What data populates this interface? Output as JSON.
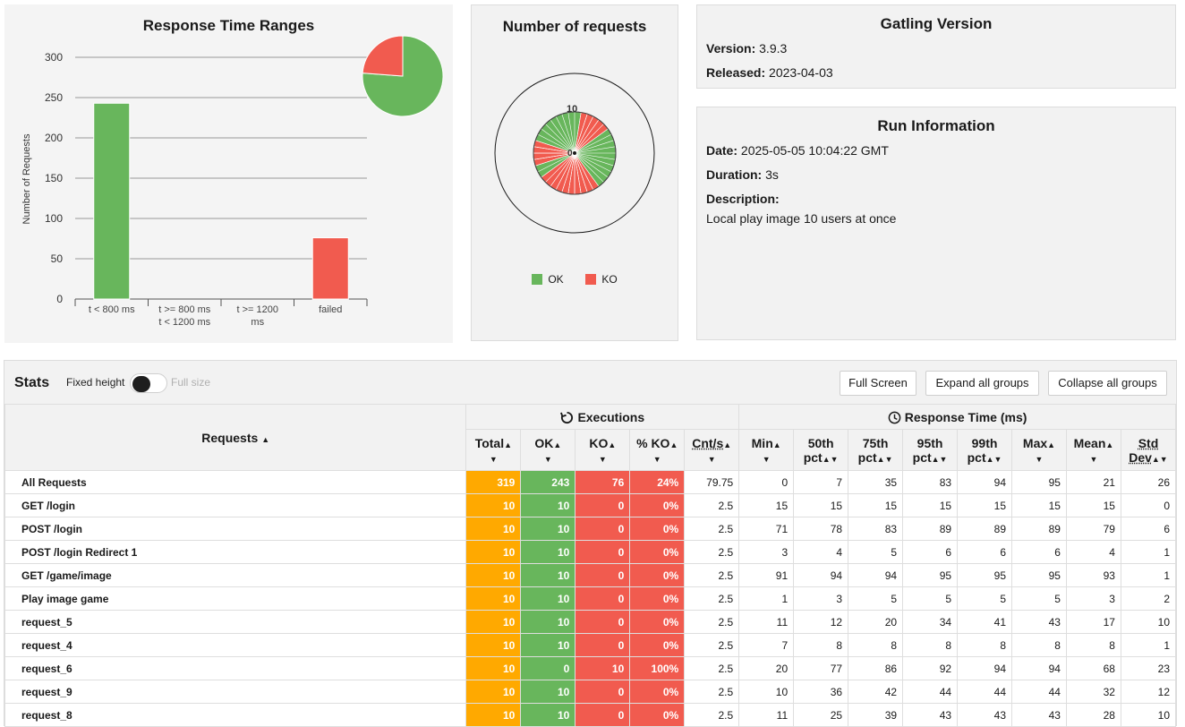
{
  "response_time_ranges": {
    "title": "Response Time Ranges",
    "ylabel": "Number of Requests",
    "y_ticks": [
      "300",
      "250",
      "200",
      "150",
      "100",
      "50",
      "0"
    ],
    "categories": [
      {
        "line1": "t < 800 ms",
        "line2": ""
      },
      {
        "line1": "t >= 800 ms",
        "line2": "t < 1200 ms"
      },
      {
        "line1": "t >= 1200",
        "line2": "ms"
      },
      {
        "line1": "failed",
        "line2": ""
      }
    ]
  },
  "chart_data": {
    "type": "bar",
    "title": "Response Time Ranges",
    "xlabel": "",
    "ylabel": "Number of Requests",
    "categories": [
      "t < 800 ms",
      "t >= 800 ms t < 1200 ms",
      "t >= 1200 ms",
      "failed"
    ],
    "values": [
      243,
      0,
      0,
      76
    ],
    "colors": [
      "#68b65c",
      "#68b65c",
      "#68b65c",
      "#f15b4f"
    ],
    "ylim": [
      0,
      300
    ],
    "inset_pie": {
      "ok": 243,
      "ko": 76
    }
  },
  "number_of_requests": {
    "title": "Number of requests",
    "scale_label_outer": "10",
    "scale_label_inner": "0",
    "legend": [
      {
        "label": "OK",
        "color": "#68b65c"
      },
      {
        "label": "KO",
        "color": "#f15b4f"
      }
    ]
  },
  "gatling_version": {
    "title": "Gatling Version",
    "version_label": "Version:",
    "version": "3.9.3",
    "released_label": "Released:",
    "released": "2023-04-03"
  },
  "run_information": {
    "title": "Run Information",
    "date_label": "Date:",
    "date": "2025-05-05 10:04:22 GMT",
    "duration_label": "Duration:",
    "duration": "3s",
    "description_label": "Description:",
    "description": "Local play image 10 users at once"
  },
  "stats": {
    "title": "Stats",
    "fixed_height": "Fixed height",
    "full_size": "Full size",
    "buttons": {
      "full_screen": "Full Screen",
      "expand": "Expand all groups",
      "collapse": "Collapse all groups"
    },
    "headers": {
      "requests": "Requests",
      "executions": "Executions",
      "response_time": "Response Time (ms)",
      "total": "Total",
      "ok": "OK",
      "ko": "KO",
      "pct_ko": "% KO",
      "cnt_s": "Cnt/s",
      "min": "Min",
      "p50a": "50th",
      "p50b": "pct",
      "p75a": "75th",
      "p75b": "pct",
      "p95a": "95th",
      "p95b": "pct",
      "p99a": "99th",
      "p99b": "pct",
      "max": "Max",
      "mean": "Mean",
      "stda": "Std",
      "stdb": "Dev"
    },
    "rows": [
      {
        "name": "All Requests",
        "total": "319",
        "ok": "243",
        "ko": "76",
        "pko": "24%",
        "cnt": "79.75",
        "min": "0",
        "p50": "7",
        "p75": "35",
        "p95": "83",
        "p99": "94",
        "max": "95",
        "mean": "21",
        "std": "26"
      },
      {
        "name": "GET /login",
        "total": "10",
        "ok": "10",
        "ko": "0",
        "pko": "0%",
        "cnt": "2.5",
        "min": "15",
        "p50": "15",
        "p75": "15",
        "p95": "15",
        "p99": "15",
        "max": "15",
        "mean": "15",
        "std": "0"
      },
      {
        "name": "POST /login",
        "total": "10",
        "ok": "10",
        "ko": "0",
        "pko": "0%",
        "cnt": "2.5",
        "min": "71",
        "p50": "78",
        "p75": "83",
        "p95": "89",
        "p99": "89",
        "max": "89",
        "mean": "79",
        "std": "6"
      },
      {
        "name": "POST /login Redirect 1",
        "total": "10",
        "ok": "10",
        "ko": "0",
        "pko": "0%",
        "cnt": "2.5",
        "min": "3",
        "p50": "4",
        "p75": "5",
        "p95": "6",
        "p99": "6",
        "max": "6",
        "mean": "4",
        "std": "1"
      },
      {
        "name": "GET /game/image",
        "total": "10",
        "ok": "10",
        "ko": "0",
        "pko": "0%",
        "cnt": "2.5",
        "min": "91",
        "p50": "94",
        "p75": "94",
        "p95": "95",
        "p99": "95",
        "max": "95",
        "mean": "93",
        "std": "1"
      },
      {
        "name": "Play image game",
        "total": "10",
        "ok": "10",
        "ko": "0",
        "pko": "0%",
        "cnt": "2.5",
        "min": "1",
        "p50": "3",
        "p75": "5",
        "p95": "5",
        "p99": "5",
        "max": "5",
        "mean": "3",
        "std": "2"
      },
      {
        "name": "request_5",
        "total": "10",
        "ok": "10",
        "ko": "0",
        "pko": "0%",
        "cnt": "2.5",
        "min": "11",
        "p50": "12",
        "p75": "20",
        "p95": "34",
        "p99": "41",
        "max": "43",
        "mean": "17",
        "std": "10"
      },
      {
        "name": "request_4",
        "total": "10",
        "ok": "10",
        "ko": "0",
        "pko": "0%",
        "cnt": "2.5",
        "min": "7",
        "p50": "8",
        "p75": "8",
        "p95": "8",
        "p99": "8",
        "max": "8",
        "mean": "8",
        "std": "1"
      },
      {
        "name": "request_6",
        "total": "10",
        "ok": "0",
        "ko": "10",
        "pko": "100%",
        "cnt": "2.5",
        "min": "20",
        "p50": "77",
        "p75": "86",
        "p95": "92",
        "p99": "94",
        "max": "94",
        "mean": "68",
        "std": "23"
      },
      {
        "name": "request_9",
        "total": "10",
        "ok": "10",
        "ko": "0",
        "pko": "0%",
        "cnt": "2.5",
        "min": "10",
        "p50": "36",
        "p75": "42",
        "p95": "44",
        "p99": "44",
        "max": "44",
        "mean": "32",
        "std": "12"
      },
      {
        "name": "request_8",
        "total": "10",
        "ok": "10",
        "ko": "0",
        "pko": "0%",
        "cnt": "2.5",
        "min": "11",
        "p50": "25",
        "p75": "39",
        "p95": "43",
        "p99": "43",
        "max": "43",
        "mean": "28",
        "std": "10"
      }
    ]
  }
}
